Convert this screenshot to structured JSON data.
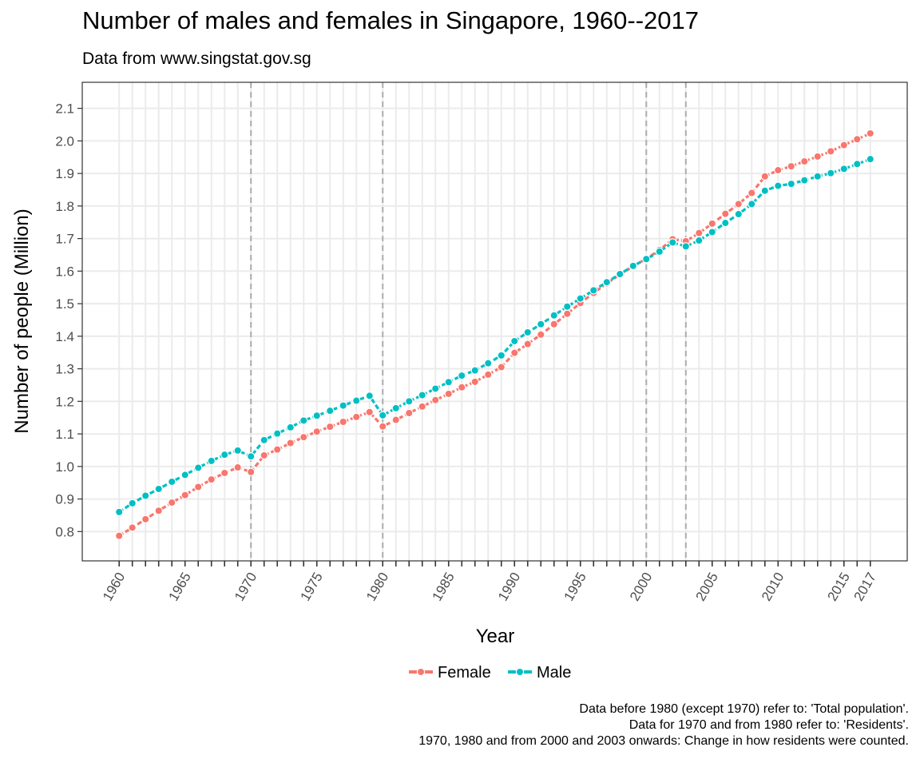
{
  "chart_data": {
    "type": "line",
    "title": "Number of males and females in Singapore, 1960--2017",
    "subtitle": "Data from www.singstat.gov.sg",
    "xlabel": "Year",
    "ylabel": "Number of people (Million)",
    "xlim": [
      1957.2,
      2019.8
    ],
    "ylim": [
      0.71,
      2.18
    ],
    "yticks": [
      0.8,
      0.9,
      1.0,
      1.1,
      1.2,
      1.3,
      1.4,
      1.5,
      1.6,
      1.7,
      1.8,
      1.9,
      2.0,
      2.1
    ],
    "ytick_labels": [
      "0.8",
      "0.9",
      "1.0",
      "1.1",
      "1.2",
      "1.3",
      "1.4",
      "1.5",
      "1.6",
      "1.7",
      "1.8",
      "1.9",
      "2.0",
      "2.1"
    ],
    "xtick_labels": [
      "1960",
      "1965",
      "1970",
      "1975",
      "1980",
      "1985",
      "1990",
      "1995",
      "2000",
      "2005",
      "2010",
      "2015",
      "2017"
    ],
    "xtick_values": [
      1960,
      1965,
      1970,
      1975,
      1980,
      1985,
      1990,
      1995,
      2000,
      2005,
      2010,
      2015,
      2017
    ],
    "grid": true,
    "legend_position": "bottom",
    "reference_lines_x": [
      1970,
      1980,
      2000,
      2003
    ],
    "x": [
      1960,
      1961,
      1962,
      1963,
      1964,
      1965,
      1966,
      1967,
      1968,
      1969,
      1970,
      1971,
      1972,
      1973,
      1974,
      1975,
      1976,
      1977,
      1978,
      1979,
      1980,
      1981,
      1982,
      1983,
      1984,
      1985,
      1986,
      1987,
      1988,
      1989,
      1990,
      1991,
      1992,
      1993,
      1994,
      1995,
      1996,
      1997,
      1998,
      1999,
      2000,
      2001,
      2002,
      2003,
      2004,
      2005,
      2006,
      2007,
      2008,
      2009,
      2010,
      2011,
      2012,
      2013,
      2014,
      2015,
      2016,
      2017
    ],
    "series": [
      {
        "name": "Female",
        "color": "#F8766D",
        "values": [
          0.787,
          0.812,
          0.838,
          0.864,
          0.889,
          0.912,
          0.937,
          0.96,
          0.98,
          0.997,
          0.983,
          1.034,
          1.052,
          1.072,
          1.09,
          1.107,
          1.122,
          1.137,
          1.152,
          1.167,
          1.123,
          1.143,
          1.164,
          1.184,
          1.204,
          1.223,
          1.243,
          1.26,
          1.282,
          1.305,
          1.349,
          1.376,
          1.405,
          1.437,
          1.469,
          1.502,
          1.533,
          1.562,
          1.59,
          1.615,
          1.638,
          1.665,
          1.698,
          1.692,
          1.717,
          1.746,
          1.776,
          1.806,
          1.84,
          1.891,
          1.91,
          1.922,
          1.937,
          1.952,
          1.968,
          1.987,
          2.005,
          2.023
        ]
      },
      {
        "name": "Male",
        "color": "#00BFC4",
        "values": [
          0.86,
          0.887,
          0.91,
          0.931,
          0.953,
          0.974,
          0.996,
          1.017,
          1.036,
          1.049,
          1.031,
          1.081,
          1.101,
          1.12,
          1.141,
          1.156,
          1.171,
          1.187,
          1.202,
          1.217,
          1.157,
          1.179,
          1.2,
          1.219,
          1.239,
          1.259,
          1.279,
          1.295,
          1.317,
          1.341,
          1.385,
          1.412,
          1.437,
          1.464,
          1.491,
          1.516,
          1.541,
          1.566,
          1.591,
          1.616,
          1.637,
          1.66,
          1.688,
          1.676,
          1.694,
          1.72,
          1.748,
          1.775,
          1.806,
          1.847,
          1.862,
          1.868,
          1.879,
          1.891,
          1.901,
          1.914,
          1.929,
          1.944
        ]
      }
    ],
    "caption": [
      "Data before 1980 (except 1970) refer to: 'Total population'.",
      "Data for 1970 and from 1980 refer to: 'Residents'.",
      "1970, 1980 and from 2000 and 2003 onwards: Change in how residents were counted."
    ]
  }
}
